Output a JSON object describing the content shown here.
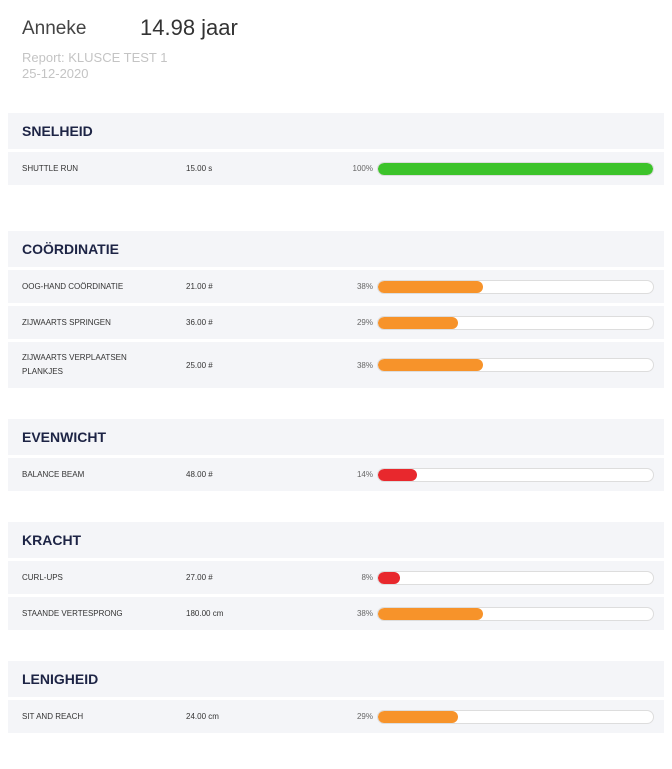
{
  "header": {
    "name": "Anneke",
    "age": "14.98 jaar",
    "report": "Report: KLUSCE TEST 1",
    "date": "25-12-2020"
  },
  "sections": [
    {
      "title": "SNELHEID",
      "rows": [
        {
          "name": "SHUTTLE RUN",
          "value": "15.00 s",
          "percent": 100,
          "percent_label": "100%",
          "color": "#3cc32a"
        }
      ]
    },
    {
      "title": "COÖRDINATIE",
      "rows": [
        {
          "name": "OOG-HAND COÖRDINATIE",
          "value": "21.00 #",
          "percent": 38,
          "percent_label": "38%",
          "color": "#f7932a"
        },
        {
          "name": "ZIJWAARTS SPRINGEN",
          "value": "36.00 #",
          "percent": 29,
          "percent_label": "29%",
          "color": "#f7932a"
        },
        {
          "name": "ZIJWAARTS VERPLAATSEN PLANKJES",
          "value": "25.00 #",
          "percent": 38,
          "percent_label": "38%",
          "color": "#f7932a"
        }
      ]
    },
    {
      "title": "EVENWICHT",
      "rows": [
        {
          "name": "BALANCE BEAM",
          "value": "48.00 #",
          "percent": 14,
          "percent_label": "14%",
          "color": "#e8282d"
        }
      ]
    },
    {
      "title": "KRACHT",
      "rows": [
        {
          "name": "CURL-UPS",
          "value": "27.00 #",
          "percent": 8,
          "percent_label": "8%",
          "color": "#e8282d"
        },
        {
          "name": "STAANDE VERTESPRONG",
          "value": "180.00 cm",
          "percent": 38,
          "percent_label": "38%",
          "color": "#f7932a"
        }
      ]
    },
    {
      "title": "LENIGHEID",
      "rows": [
        {
          "name": "SIT AND REACH",
          "value": "24.00 cm",
          "percent": 29,
          "percent_label": "29%",
          "color": "#f7932a"
        }
      ]
    }
  ]
}
